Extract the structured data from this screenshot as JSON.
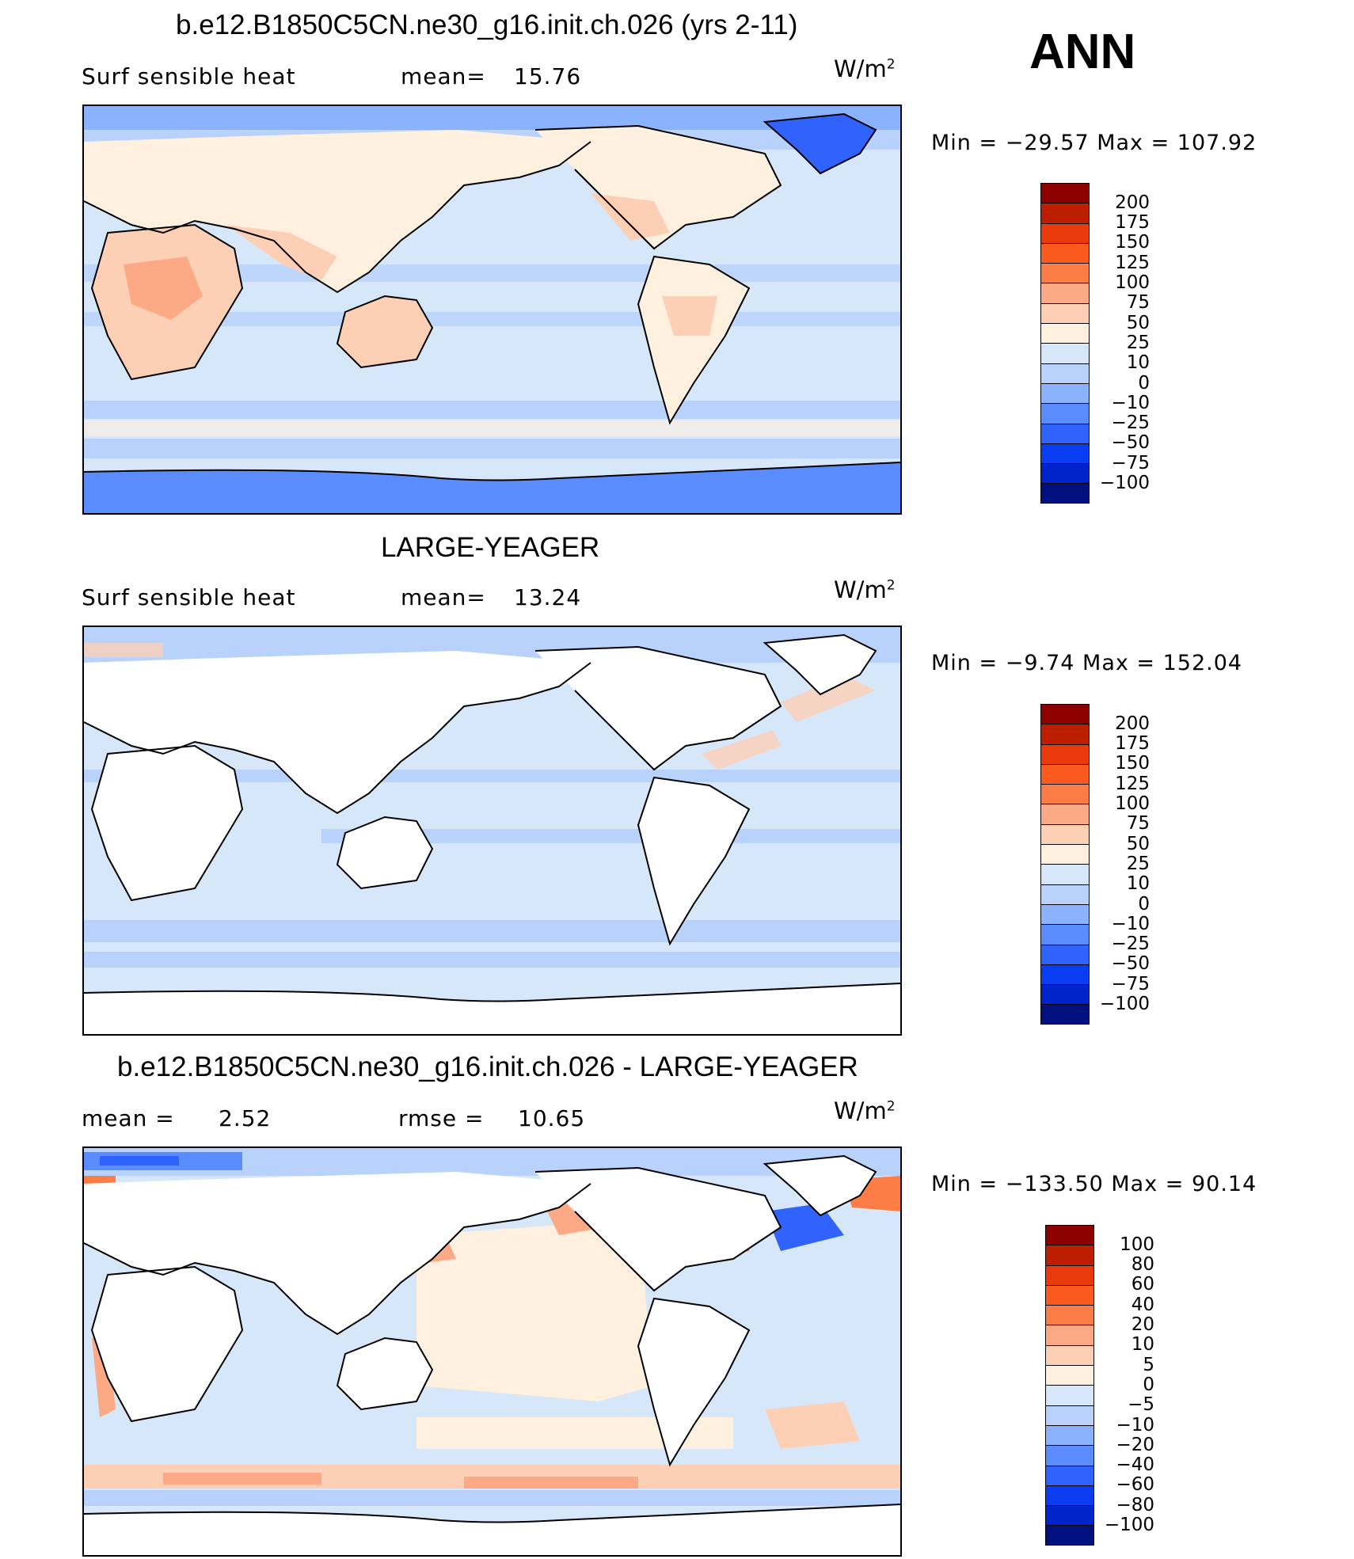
{
  "season": "ANN",
  "panels": [
    {
      "title": "b.e12.B1850C5CN.ne30_g16.init.ch.026 (yrs 2-11)",
      "left_label": "Surf  sensible  heat",
      "stat_label": "mean=",
      "stat_value": "15.76",
      "stat2_label": "",
      "stat2_value": "",
      "units_base": "W/m",
      "units_exp": "2",
      "minmax": "Min  =  −29.57  Max  =  107.92",
      "colorbar": {
        "labels": [
          "200",
          "175",
          "150",
          "125",
          "100",
          "75",
          "50",
          "25",
          "10",
          "0",
          "−10",
          "−25",
          "−50",
          "−75",
          "−100"
        ],
        "colors": [
          "#8c0000",
          "#be1e00",
          "#e83a0a",
          "#fb5a1e",
          "#fc7e46",
          "#fcaa86",
          "#fdd0b6",
          "#fff0e0",
          "#d6e7fa",
          "#b8d2fb",
          "#8ab2fd",
          "#5a8cfd",
          "#2f63fb",
          "#0a3cf2",
          "#0024cc",
          "#00107e"
        ]
      }
    },
    {
      "title": "LARGE-YEAGER",
      "left_label": "Surf  sensible  heat",
      "stat_label": "mean=",
      "stat_value": "13.24",
      "stat2_label": "",
      "stat2_value": "",
      "units_base": "W/m",
      "units_exp": "2",
      "minmax": "Min  =   −9.74  Max  =  152.04",
      "colorbar": {
        "labels": [
          "200",
          "175",
          "150",
          "125",
          "100",
          "75",
          "50",
          "25",
          "10",
          "0",
          "−10",
          "−25",
          "−50",
          "−75",
          "−100"
        ],
        "colors": [
          "#8c0000",
          "#be1e00",
          "#e83a0a",
          "#fb5a1e",
          "#fc7e46",
          "#fcaa86",
          "#fdd0b6",
          "#fff0e0",
          "#d6e7fa",
          "#b8d2fb",
          "#8ab2fd",
          "#5a8cfd",
          "#2f63fb",
          "#0a3cf2",
          "#0024cc",
          "#00107e"
        ]
      }
    },
    {
      "title": "b.e12.B1850C5CN.ne30_g16.init.ch.026 - LARGE-YEAGER",
      "left_label": "mean  =",
      "stat_label": "",
      "stat_value": "2.52",
      "stat2_label": "rmse  =",
      "stat2_value": "10.65",
      "units_base": "W/m",
      "units_exp": "2",
      "minmax": "Min  =  −133.50  Max  =   90.14",
      "colorbar": {
        "labels": [
          "100",
          "80",
          "60",
          "40",
          "20",
          "10",
          "5",
          "0",
          "−5",
          "−10",
          "−20",
          "−40",
          "−60",
          "−80",
          "−100"
        ],
        "colors": [
          "#8c0000",
          "#be1e00",
          "#e83a0a",
          "#fb5a1e",
          "#fc7e46",
          "#fcaa86",
          "#fdd0b6",
          "#fff0e0",
          "#d6e7fa",
          "#b8d2fb",
          "#8ab2fd",
          "#5a8cfd",
          "#2f63fb",
          "#0a3cf2",
          "#0024cc",
          "#00107e"
        ]
      }
    }
  ],
  "map_colors": {
    "ocean_base": "#d6e7fa",
    "ocean_neg": "#b8d2fb",
    "ocean_neg2": "#8ab2fd",
    "ice": "#5a8cfd",
    "land_warm": "#fdd0b6",
    "land_hot": "#fcaa86",
    "diff_warm": "#fff0e0",
    "diff_pos": "#fdd0b6",
    "diff_pos2": "#fcaa86",
    "diff_pos3": "#fb5a1e",
    "diff_neg": "#2f63fb",
    "missing": "#ffffff",
    "coast": "#000000"
  }
}
